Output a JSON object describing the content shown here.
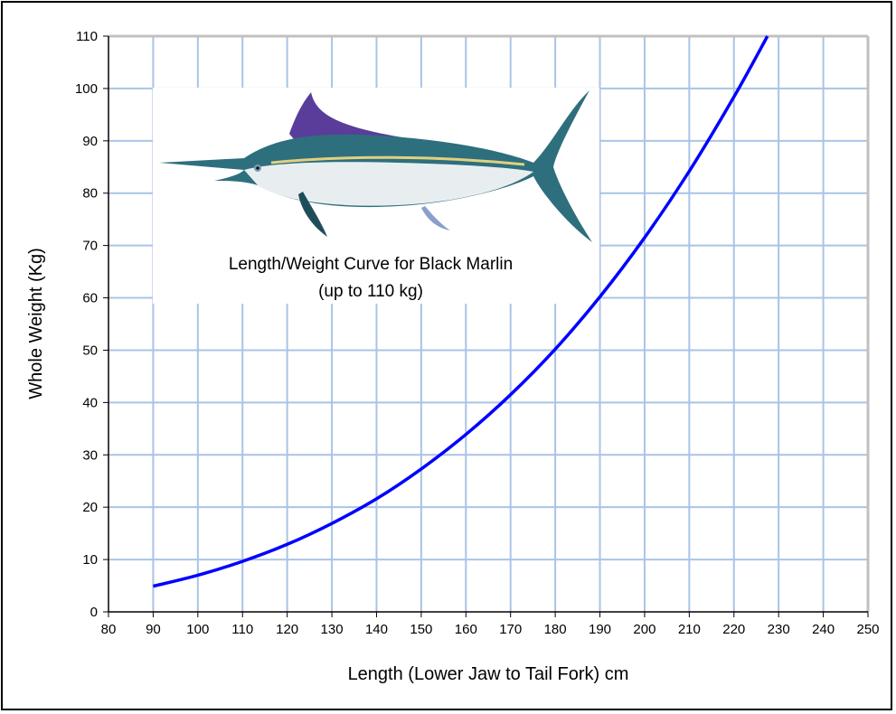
{
  "chart_data": {
    "type": "line",
    "title": "Length/Weight Curve for Black Marlin",
    "subtitle": "(up to 110 kg)",
    "xlabel": "Length (Lower Jaw to Tail Fork) cm",
    "ylabel": "Whole Weight (Kg)",
    "xlim": [
      80,
      250
    ],
    "ylim": [
      0,
      110
    ],
    "xticks": [
      80,
      90,
      100,
      110,
      120,
      130,
      140,
      150,
      160,
      170,
      180,
      190,
      200,
      210,
      220,
      230,
      240,
      250
    ],
    "yticks": [
      0,
      10,
      20,
      30,
      40,
      50,
      60,
      70,
      80,
      90,
      100,
      110
    ],
    "grid": true,
    "series": [
      {
        "name": "Black Marlin",
        "color": "#0000ff",
        "x": [
          90,
          100,
          110,
          120,
          130,
          140,
          150,
          160,
          170,
          180,
          190,
          200,
          210,
          220,
          227.5
        ],
        "y": [
          4.9,
          7.0,
          9.65,
          12.9,
          16.9,
          21.6,
          27.3,
          33.9,
          41.5,
          50.2,
          60.2,
          71.5,
          84.2,
          98.4,
          110
        ]
      }
    ],
    "image": "black-marlin-illustration",
    "colors": {
      "grid": "#a9c4e6",
      "frame": "#c0c0c0",
      "line": "#0000ff"
    }
  }
}
